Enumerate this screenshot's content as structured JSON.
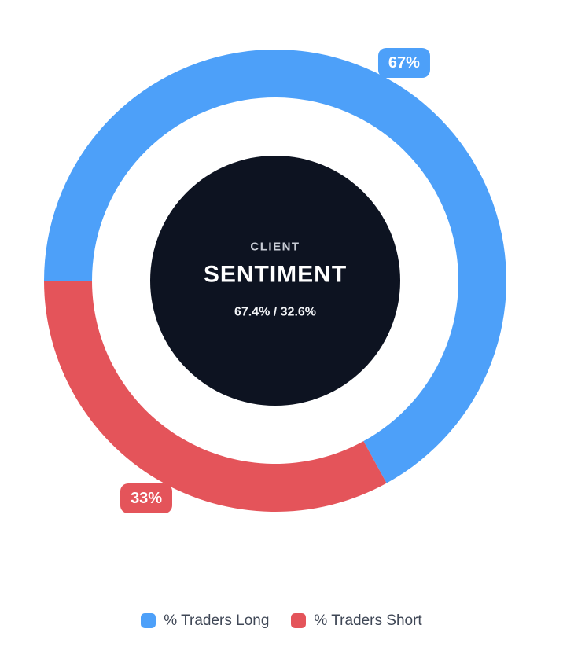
{
  "chart_data": {
    "type": "pie",
    "title": "CLIENT SENTIMENT",
    "donut": true,
    "start_angle_deg": 270,
    "direction": "clockwise",
    "legend_position": "bottom",
    "center": {
      "eyebrow": "CLIENT",
      "title": "SENTIMENT",
      "subtitle": "67.4% / 32.6%"
    },
    "series": [
      {
        "name": "% Traders Long",
        "value": 67,
        "label": "67%",
        "color": "#4DA0F9"
      },
      {
        "name": "% Traders Short",
        "value": 33,
        "label": "33%",
        "color": "#E4545A"
      }
    ]
  },
  "colors": {
    "background": "#FFFFFF",
    "center_disc": "#0D1321",
    "eyebrow_text": "#C9CDD6",
    "legend_text": "#3F4756",
    "badge_text": "#FFFFFF"
  }
}
